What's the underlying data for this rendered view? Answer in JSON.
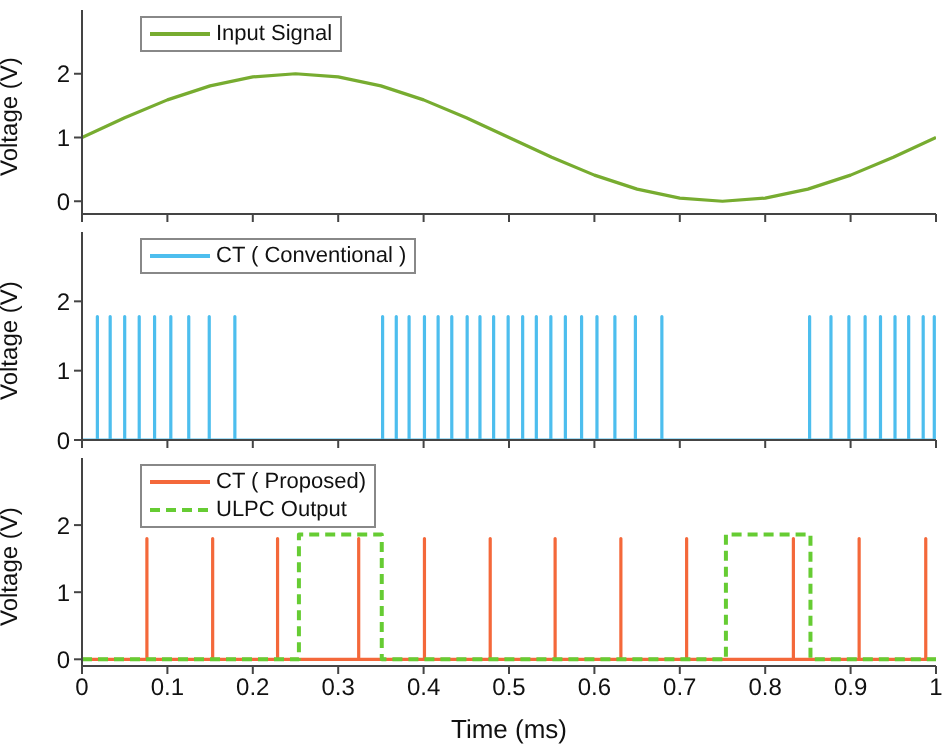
{
  "chart_data": [
    {
      "type": "line",
      "ylabel": "Voltage (V)",
      "xlim": [
        0,
        1
      ],
      "xticks": [
        0,
        0.1,
        0.2,
        0.3,
        0.4,
        0.5,
        0.6,
        0.7,
        0.8,
        0.9,
        1
      ],
      "ylim": [
        -0.2,
        3
      ],
      "yticks": [
        0,
        1,
        2
      ],
      "tick_labels": "y",
      "legend": "top left",
      "grid": false,
      "series": [
        {
          "name": "Input Signal",
          "color": "#77ac30",
          "x": [
            0,
            0.05,
            0.1,
            0.15,
            0.2,
            0.25,
            0.3,
            0.35,
            0.4,
            0.45,
            0.5,
            0.55,
            0.6,
            0.65,
            0.7,
            0.75,
            0.8,
            0.85,
            0.9,
            0.95,
            1
          ],
          "values": [
            1,
            1.31,
            1.59,
            1.81,
            1.95,
            2,
            1.95,
            1.81,
            1.59,
            1.31,
            1,
            0.69,
            0.41,
            0.19,
            0.05,
            0,
            0.05,
            0.19,
            0.41,
            0.69,
            1
          ]
        }
      ]
    },
    {
      "type": "line",
      "ylabel": "Voltage (V)",
      "xlim": [
        0,
        1
      ],
      "xticks": [
        0,
        0.1,
        0.2,
        0.3,
        0.4,
        0.5,
        0.6,
        0.7,
        0.8,
        0.9,
        1
      ],
      "ylim": [
        0,
        3
      ],
      "yticks": [
        0,
        1,
        2
      ],
      "tick_labels": "y",
      "legend": "top left",
      "grid": false,
      "series": [
        {
          "name": "CT ( Conventional )",
          "color": "#4dbeee",
          "x": [
            0,
            0.018,
            0.018,
            0.018,
            0.033,
            0.033,
            0.033,
            0.05,
            0.05,
            0.05,
            0.067,
            0.067,
            0.067,
            0.085,
            0.085,
            0.085,
            0.104,
            0.104,
            0.104,
            0.125,
            0.125,
            0.125,
            0.149,
            0.149,
            0.149,
            0.179,
            0.179,
            0.179,
            0.352,
            0.352,
            0.352,
            0.368,
            0.368,
            0.368,
            0.383,
            0.383,
            0.383,
            0.401,
            0.401,
            0.401,
            0.417,
            0.417,
            0.417,
            0.433,
            0.433,
            0.433,
            0.451,
            0.451,
            0.451,
            0.466,
            0.466,
            0.466,
            0.482,
            0.482,
            0.482,
            0.499,
            0.499,
            0.499,
            0.516,
            0.516,
            0.516,
            0.532,
            0.532,
            0.532,
            0.549,
            0.549,
            0.549,
            0.566,
            0.566,
            0.566,
            0.585,
            0.585,
            0.585,
            0.603,
            0.603,
            0.603,
            0.624,
            0.624,
            0.624,
            0.648,
            0.648,
            0.648,
            0.679,
            0.679,
            0.679,
            0.852,
            0.852,
            0.852,
            0.877,
            0.877,
            0.877,
            0.898,
            0.898,
            0.898,
            0.917,
            0.917,
            0.917,
            0.935,
            0.935,
            0.935,
            0.952,
            0.952,
            0.952,
            0.968,
            0.968,
            0.968,
            0.985,
            0.985,
            0.985,
            0.998,
            0.998,
            0.998
          ],
          "values": [
            0,
            0,
            1.78,
            0,
            0,
            1.78,
            0,
            0,
            1.78,
            0,
            0,
            1.78,
            0,
            0,
            1.78,
            0,
            0,
            1.78,
            0,
            0,
            1.78,
            0,
            0,
            1.78,
            0,
            0,
            1.78,
            0,
            0,
            1.78,
            0,
            0,
            1.78,
            0,
            0,
            1.78,
            0,
            0,
            1.78,
            0,
            0,
            1.78,
            0,
            0,
            1.78,
            0,
            0,
            1.78,
            0,
            0,
            1.78,
            0,
            0,
            1.78,
            0,
            0,
            1.78,
            0,
            0,
            1.78,
            0,
            0,
            1.78,
            0,
            0,
            1.78,
            0,
            0,
            1.78,
            0,
            0,
            1.78,
            0,
            0,
            1.78,
            0,
            0,
            1.78,
            0,
            0,
            1.78,
            0,
            0,
            1.78,
            0,
            0,
            1.78,
            0,
            0,
            1.78,
            0,
            0,
            1.78,
            0,
            0,
            1.78,
            0,
            0,
            1.78,
            0,
            0,
            1.78,
            0,
            0,
            1.78,
            0,
            0,
            1.78,
            0,
            0,
            1.78,
            0
          ]
        }
      ]
    },
    {
      "type": "line",
      "xlabel": "Time (ms)",
      "ylabel": "Voltage (V)",
      "xlim": [
        0,
        1
      ],
      "xticks": [
        0,
        0.1,
        0.2,
        0.3,
        0.4,
        0.5,
        0.6,
        0.7,
        0.8,
        0.9,
        1
      ],
      "ylim": [
        -0.1,
        3
      ],
      "yticks": [
        0,
        1,
        2
      ],
      "legend": "top left",
      "grid": false,
      "series": [
        {
          "name": "CT ( Proposed)",
          "color": "#f4683a",
          "x": [
            0,
            0.076,
            0.076,
            0.076,
            0.153,
            0.153,
            0.153,
            0.229,
            0.229,
            0.229,
            0.324,
            0.324,
            0.324,
            0.401,
            0.401,
            0.401,
            0.478,
            0.478,
            0.478,
            0.554,
            0.554,
            0.554,
            0.631,
            0.631,
            0.631,
            0.708,
            0.708,
            0.708,
            0.833,
            0.833,
            0.833,
            0.91,
            0.91,
            0.91,
            0.988,
            0.988,
            0.988,
            1
          ],
          "values": [
            0,
            0,
            1.8,
            0,
            0,
            1.8,
            0,
            0,
            1.8,
            0,
            0,
            1.8,
            0,
            0,
            1.8,
            0,
            0,
            1.8,
            0,
            0,
            1.8,
            0,
            0,
            1.8,
            0,
            0,
            1.8,
            0,
            0,
            1.8,
            0,
            0,
            1.8,
            0,
            0,
            1.8,
            0,
            0
          ]
        },
        {
          "name": "ULPC Output",
          "color": "#66cc33",
          "line_style": "dashed",
          "x": [
            0,
            0.254,
            0.254,
            0.351,
            0.351,
            0.754,
            0.754,
            0.853,
            0.853,
            1
          ],
          "values": [
            0,
            0,
            1.86,
            1.86,
            0,
            0,
            1.86,
            1.86,
            0,
            0
          ]
        }
      ]
    }
  ]
}
